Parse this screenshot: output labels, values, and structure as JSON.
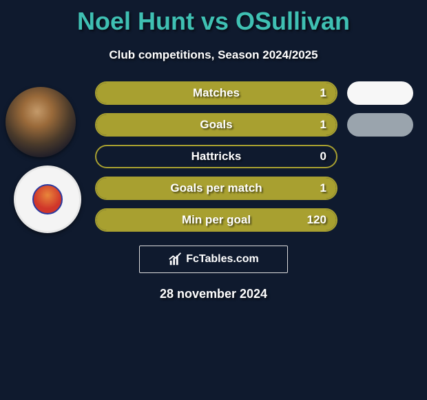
{
  "colors": {
    "background": "#0f1a2e",
    "accent": "#a8a030",
    "title": "#3fc0b3",
    "subtitle": "#ffffff",
    "bar_border": "#a8a030",
    "pill_white": "#f7f7f7",
    "pill_gray": "#9aa4ad"
  },
  "title": "Noel Hunt vs OSullivan",
  "subtitle": "Club competitions, Season 2024/2025",
  "stats": [
    {
      "label": "Matches",
      "value": "1",
      "fill_pct": 100,
      "fill_color": "#a8a030",
      "border_color": "#a8a030",
      "pill": "white"
    },
    {
      "label": "Goals",
      "value": "1",
      "fill_pct": 100,
      "fill_color": "#a8a030",
      "border_color": "#a8a030",
      "pill": "gray"
    },
    {
      "label": "Hattricks",
      "value": "0",
      "fill_pct": 0,
      "fill_color": "#a8a030",
      "border_color": "#a8a030",
      "pill": null
    },
    {
      "label": "Goals per match",
      "value": "1",
      "fill_pct": 100,
      "fill_color": "#a8a030",
      "border_color": "#a8a030",
      "pill": null
    },
    {
      "label": "Min per goal",
      "value": "120",
      "fill_pct": 100,
      "fill_color": "#a8a030",
      "border_color": "#a8a030",
      "pill": null
    }
  ],
  "attribution": {
    "text": "FcTables.com"
  },
  "date": "28 november 2024"
}
